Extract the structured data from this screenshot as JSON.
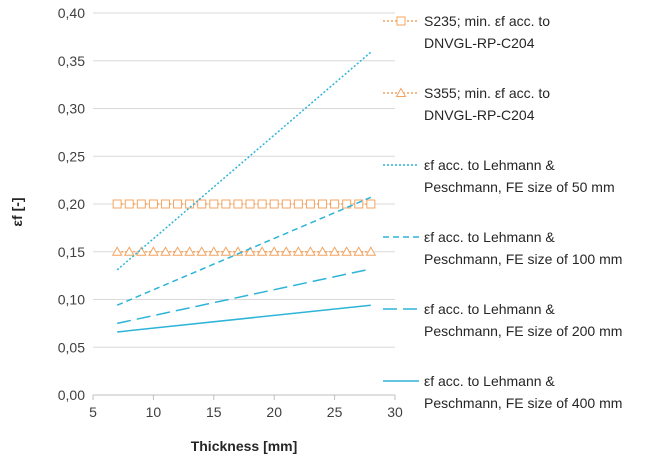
{
  "chart_data": {
    "type": "line",
    "xlabel": "Thickness [mm]",
    "ylabel": "εf [-]",
    "xlim": [
      5,
      30
    ],
    "ylim": [
      0,
      0.4
    ],
    "x_ticks": [
      "5",
      "10",
      "15",
      "20",
      "25",
      "30"
    ],
    "y_ticks": [
      "0,00",
      "0,05",
      "0,10",
      "0,15",
      "0,20",
      "0,25",
      "0,30",
      "0,35",
      "0,40"
    ],
    "grid": "horizontal",
    "legend_position": "right",
    "series": [
      {
        "name": "S235; min. εf acc. to DNVGL-RP-C204",
        "legend_lines": [
          "S235; min. εf acc. to",
          "DNVGL-RP-C204"
        ],
        "color": "#F4A460",
        "line_style": "dotted",
        "marker": "square",
        "x": [
          7,
          8,
          9,
          10,
          11,
          12,
          13,
          14,
          15,
          16,
          17,
          18,
          19,
          20,
          21,
          22,
          23,
          24,
          25,
          26,
          27,
          28
        ],
        "y": [
          0.2,
          0.2,
          0.2,
          0.2,
          0.2,
          0.2,
          0.2,
          0.2,
          0.2,
          0.2,
          0.2,
          0.2,
          0.2,
          0.2,
          0.2,
          0.2,
          0.2,
          0.2,
          0.2,
          0.2,
          0.2,
          0.2
        ]
      },
      {
        "name": "S355; min. εf acc. to DNVGL-RP-C204",
        "legend_lines": [
          "S355; min. εf acc. to",
          "DNVGL-RP-C204"
        ],
        "color": "#F4A460",
        "line_style": "dotted",
        "marker": "triangle",
        "x": [
          7,
          8,
          9,
          10,
          11,
          12,
          13,
          14,
          15,
          16,
          17,
          18,
          19,
          20,
          21,
          22,
          23,
          24,
          25,
          26,
          27,
          28
        ],
        "y": [
          0.15,
          0.15,
          0.15,
          0.15,
          0.15,
          0.15,
          0.15,
          0.15,
          0.15,
          0.15,
          0.15,
          0.15,
          0.15,
          0.15,
          0.15,
          0.15,
          0.15,
          0.15,
          0.15,
          0.15,
          0.15,
          0.15
        ]
      },
      {
        "name": "εf acc. to Lehmann & Peschmann, FE size of 50 mm",
        "legend_lines": [
          "εf acc. to Lehmann &",
          "Peschmann, FE size of 50 mm"
        ],
        "color": "#2EB4D9",
        "line_style": "dotted",
        "marker": "none",
        "x": [
          7,
          28
        ],
        "y": [
          0.131,
          0.359
        ]
      },
      {
        "name": "εf acc. to Lehmann & Peschmann, FE size of 100 mm",
        "legend_lines": [
          "εf acc. to Lehmann &",
          "Peschmann, FE size of 100 mm"
        ],
        "color": "#2EB4D9",
        "line_style": "short-dash",
        "marker": "none",
        "x": [
          7,
          28
        ],
        "y": [
          0.094,
          0.207
        ]
      },
      {
        "name": "εf acc. to Lehmann & Peschmann, FE size of 200 mm",
        "legend_lines": [
          "εf acc. to Lehmann &",
          "Peschmann, FE size of 200 mm"
        ],
        "color": "#2EB4D9",
        "line_style": "long-dash",
        "marker": "none",
        "x": [
          7,
          28
        ],
        "y": [
          0.075,
          0.132
        ]
      },
      {
        "name": "εf acc. to Lehmann & Peschmann, FE size of 400 mm",
        "legend_lines": [
          "εf acc. to Lehmann &",
          "Peschmann, FE size of 400 mm"
        ],
        "color": "#2EB4D9",
        "line_style": "solid",
        "marker": "none",
        "x": [
          7,
          28
        ],
        "y": [
          0.066,
          0.094
        ]
      }
    ]
  }
}
